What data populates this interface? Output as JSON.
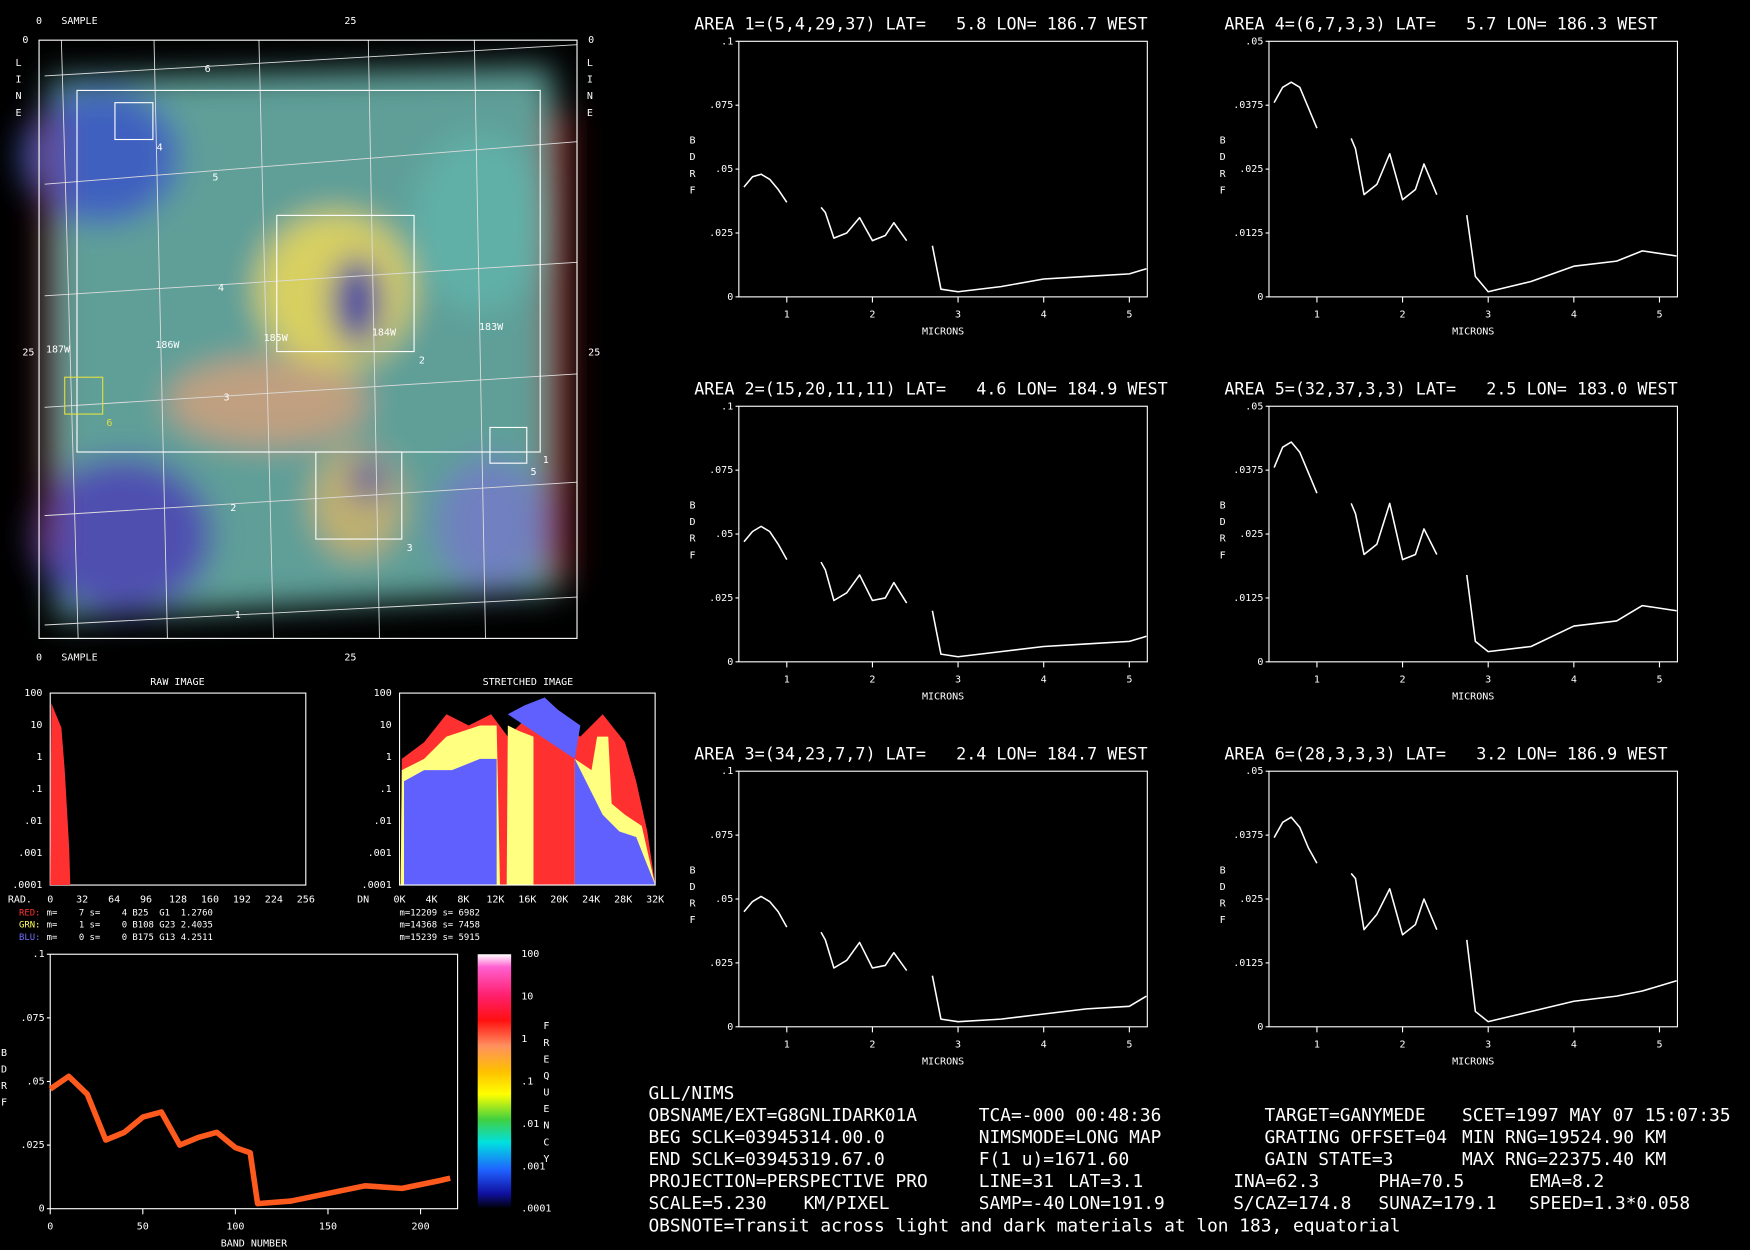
{
  "chart_data": [
    {
      "type": "line",
      "title": "AREA 1=(5,4,29,37) LAT=   5.8 LON= 186.7 WEST",
      "x_label": "MICRONS",
      "y_label": "BDRF",
      "color": "#ffffff",
      "x": [
        0.5,
        0.6,
        0.7,
        0.8,
        0.9,
        1.0,
        1.2,
        1.4,
        1.45,
        1.55,
        1.7,
        1.85,
        2.0,
        2.15,
        2.25,
        2.4,
        2.55,
        2.7,
        2.8,
        3.0,
        3.5,
        4.0,
        4.5,
        5.0,
        5.2
      ],
      "values": [
        0.043,
        0.047,
        0.048,
        0.046,
        0.042,
        0.037,
        null,
        0.035,
        0.033,
        0.023,
        0.025,
        0.031,
        0.022,
        0.024,
        0.029,
        0.022,
        null,
        0.02,
        0.003,
        0.002,
        0.004,
        0.007,
        0.008,
        0.009,
        0.011
      ],
      "xlim": [
        0.44,
        5.21
      ],
      "xticks": [
        1,
        2,
        3,
        4,
        5
      ],
      "ylim": [
        0,
        0.1
      ],
      "yticks": [
        0,
        {
          "value": 0.025,
          "label": ".025"
        },
        {
          "value": 0.05,
          "label": ".05"
        },
        {
          "value": 0.075,
          "label": ".075"
        },
        {
          "value": 0.1,
          "label": ".1"
        }
      ]
    },
    {
      "type": "line",
      "title": "AREA 2=(15,20,11,11) LAT=   4.6 LON= 184.9 WEST",
      "x_label": "MICRONS",
      "y_label": "BDRF",
      "color": "#ffffff",
      "x": [
        0.5,
        0.6,
        0.7,
        0.8,
        0.9,
        1.0,
        1.2,
        1.4,
        1.45,
        1.55,
        1.7,
        1.85,
        2.0,
        2.15,
        2.25,
        2.4,
        2.55,
        2.7,
        2.8,
        3.0,
        3.5,
        4.0,
        4.5,
        5.0,
        5.2
      ],
      "values": [
        0.047,
        0.051,
        0.053,
        0.051,
        0.046,
        0.04,
        null,
        0.039,
        0.036,
        0.024,
        0.027,
        0.034,
        0.024,
        0.025,
        0.031,
        0.023,
        null,
        0.02,
        0.003,
        0.002,
        0.004,
        0.006,
        0.007,
        0.008,
        0.01
      ],
      "xlim": [
        0.44,
        5.21
      ],
      "xticks": [
        1,
        2,
        3,
        4,
        5
      ],
      "ylim": [
        0,
        0.1
      ],
      "yticks": [
        0,
        {
          "value": 0.025,
          "label": ".025"
        },
        {
          "value": 0.05,
          "label": ".05"
        },
        {
          "value": 0.075,
          "label": ".075"
        },
        {
          "value": 0.1,
          "label": ".1"
        }
      ]
    },
    {
      "type": "line",
      "title": "AREA 3=(34,23,7,7) LAT=   2.4 LON= 184.7 WEST",
      "x_label": "MICRONS",
      "y_label": "BDRF",
      "color": "#ffffff",
      "x": [
        0.5,
        0.6,
        0.7,
        0.8,
        0.9,
        1.0,
        1.2,
        1.4,
        1.45,
        1.55,
        1.7,
        1.85,
        2.0,
        2.15,
        2.25,
        2.4,
        2.55,
        2.7,
        2.8,
        3.0,
        3.5,
        4.0,
        4.5,
        5.0,
        5.2
      ],
      "values": [
        0.045,
        0.049,
        0.051,
        0.049,
        0.045,
        0.039,
        null,
        0.037,
        0.034,
        0.023,
        0.026,
        0.033,
        0.023,
        0.024,
        0.029,
        0.022,
        null,
        0.02,
        0.003,
        0.002,
        0.003,
        0.005,
        0.007,
        0.008,
        0.012
      ],
      "xlim": [
        0.44,
        5.21
      ],
      "xticks": [
        1,
        2,
        3,
        4,
        5
      ],
      "ylim": [
        0,
        0.1
      ],
      "yticks": [
        0,
        {
          "value": 0.025,
          "label": ".025"
        },
        {
          "value": 0.05,
          "label": ".05"
        },
        {
          "value": 0.075,
          "label": ".075"
        },
        {
          "value": 0.1,
          "label": ".1"
        }
      ]
    },
    {
      "type": "line",
      "title": "AREA 4=(6,7,3,3) LAT=   5.7 LON= 186.3 WEST",
      "x_label": "MICRONS",
      "y_label": "BDRF",
      "color": "#ffffff",
      "x": [
        0.5,
        0.6,
        0.7,
        0.8,
        0.9,
        1.0,
        1.2,
        1.4,
        1.45,
        1.55,
        1.7,
        1.85,
        2.0,
        2.15,
        2.25,
        2.4,
        2.55,
        2.75,
        2.85,
        3.0,
        3.5,
        4.0,
        4.5,
        4.8,
        5.2
      ],
      "values": [
        0.038,
        0.041,
        0.042,
        0.041,
        0.037,
        0.033,
        null,
        0.031,
        0.029,
        0.02,
        0.022,
        0.028,
        0.019,
        0.021,
        0.026,
        0.02,
        null,
        0.016,
        0.004,
        0.001,
        0.003,
        0.006,
        0.007,
        0.009,
        0.008
      ],
      "xlim": [
        0.44,
        5.21
      ],
      "xticks": [
        1,
        2,
        3,
        4,
        5
      ],
      "ylim": [
        0,
        0.05
      ],
      "yticks": [
        0,
        {
          "value": 0.0125,
          "label": ".0125"
        },
        {
          "value": 0.025,
          "label": ".025"
        },
        {
          "value": 0.0375,
          "label": ".0375"
        },
        {
          "value": 0.05,
          "label": ".05"
        }
      ]
    },
    {
      "type": "line",
      "title": "AREA 5=(32,37,3,3) LAT=   2.5 LON= 183.0 WEST",
      "x_label": "MICRONS",
      "y_label": "BDRF",
      "color": "#ffffff",
      "x": [
        0.5,
        0.6,
        0.7,
        0.8,
        0.9,
        1.0,
        1.2,
        1.4,
        1.45,
        1.55,
        1.7,
        1.85,
        2.0,
        2.15,
        2.25,
        2.4,
        2.55,
        2.75,
        2.85,
        3.0,
        3.5,
        4.0,
        4.5,
        4.8,
        5.2
      ],
      "values": [
        0.038,
        0.042,
        0.043,
        0.041,
        0.037,
        0.033,
        null,
        0.031,
        0.029,
        0.021,
        0.023,
        0.031,
        0.02,
        0.021,
        0.026,
        0.021,
        null,
        0.017,
        0.004,
        0.002,
        0.003,
        0.007,
        0.008,
        0.011,
        0.01
      ],
      "xlim": [
        0.44,
        5.21
      ],
      "xticks": [
        1,
        2,
        3,
        4,
        5
      ],
      "ylim": [
        0,
        0.05
      ],
      "yticks": [
        0,
        {
          "value": 0.0125,
          "label": ".0125"
        },
        {
          "value": 0.025,
          "label": ".025"
        },
        {
          "value": 0.0375,
          "label": ".0375"
        },
        {
          "value": 0.05,
          "label": ".05"
        }
      ]
    },
    {
      "type": "line",
      "title": "AREA 6=(28,3,3,3) LAT=   3.2 LON= 186.9 WEST",
      "x_label": "MICRONS",
      "y_label": "BDRF",
      "color": "#ffffff",
      "x": [
        0.5,
        0.6,
        0.7,
        0.8,
        0.9,
        1.0,
        1.2,
        1.4,
        1.45,
        1.55,
        1.7,
        1.85,
        2.0,
        2.15,
        2.25,
        2.4,
        2.55,
        2.75,
        2.85,
        3.0,
        3.5,
        4.0,
        4.5,
        4.8,
        5.2
      ],
      "values": [
        0.037,
        0.04,
        0.041,
        0.039,
        0.035,
        0.032,
        null,
        0.03,
        0.029,
        0.019,
        0.022,
        0.027,
        0.018,
        0.02,
        0.025,
        0.019,
        null,
        0.017,
        0.003,
        0.001,
        0.003,
        0.005,
        0.006,
        0.007,
        0.009
      ],
      "xlim": [
        0.44,
        5.21
      ],
      "xticks": [
        1,
        2,
        3,
        4,
        5
      ],
      "ylim": [
        0,
        0.05
      ],
      "yticks": [
        0,
        {
          "value": 0.0125,
          "label": ".0125"
        },
        {
          "value": 0.025,
          "label": ".025"
        },
        {
          "value": 0.0375,
          "label": ".0375"
        },
        {
          "value": 0.05,
          "label": ".05"
        }
      ]
    },
    {
      "type": "line",
      "x_label": "BAND NUMBER",
      "y_label": "BDRF",
      "color": "#ff5a1e",
      "x": [
        0,
        10,
        20,
        30,
        40,
        50,
        60,
        70,
        80,
        90,
        100,
        108,
        112,
        130,
        150,
        170,
        190,
        210,
        216
      ],
      "values": [
        0.047,
        0.052,
        0.045,
        0.027,
        0.03,
        0.036,
        0.038,
        0.025,
        0.028,
        0.03,
        0.024,
        0.022,
        0.002,
        0.003,
        0.006,
        0.009,
        0.008,
        0.011,
        0.012
      ],
      "xlim": [
        0,
        220
      ],
      "xticks": [
        0,
        50,
        100,
        150,
        200
      ],
      "ylim": [
        0,
        0.1
      ],
      "yticks": [
        0,
        {
          "value": 0.025,
          "label": ".025"
        },
        {
          "value": 0.05,
          "label": ".05"
        },
        {
          "value": 0.075,
          "label": ".075"
        },
        {
          "value": 0.1,
          "label": ".1"
        }
      ]
    }
  ],
  "image": {
    "top_axis": [
      "0",
      "SAMPLE",
      "25"
    ],
    "bottom_axis": [
      "0",
      "SAMPLE",
      "25"
    ],
    "left_axis": [
      "0",
      "25"
    ],
    "right_axis": [
      "0",
      "25"
    ],
    "side_labels": [
      "LINE",
      "LINE"
    ],
    "grid_numbers": [
      "6",
      "5",
      "4",
      "3",
      "2",
      "1"
    ],
    "longitudes": [
      "187W",
      "186W",
      "185W",
      "184W",
      "183W"
    ],
    "area_numbers": [
      "4",
      "2",
      "6",
      "1",
      "5",
      "3"
    ]
  },
  "histograms": [
    {
      "title": "RAW IMAGE",
      "x_label": "RAD.",
      "xticks": [
        "0",
        "32",
        "64",
        "96",
        "128",
        "160",
        "192",
        "224",
        "256"
      ],
      "yticks": [
        "100",
        "10",
        "1",
        ".1",
        ".01",
        ".001",
        ".0001"
      ]
    },
    {
      "title": "STRETCHED IMAGE",
      "x_label": "DN",
      "xticks": [
        "0K",
        "4K",
        "8K",
        "12K",
        "16K",
        "20K",
        "24K",
        "28K",
        "32K"
      ],
      "yticks": [
        "100",
        "10",
        "1",
        ".1",
        ".01",
        ".001",
        ".0001"
      ]
    }
  ],
  "stats": {
    "raw": [
      {
        "label": "RED:",
        "color": "#ff3030",
        "text": " m=    7 s=    4 B25  G1  1.2760"
      },
      {
        "label": "GRN:",
        "color": "#ffff60",
        "text": " m=    1 s=    0 B108 G23 2.4035"
      },
      {
        "label": "BLU:",
        "color": "#7070ff",
        "text": " m=    0 s=    0 B175 G13 4.2511"
      }
    ],
    "stretched": [
      "m=12209 s= 6982",
      "m=14368 s= 7458",
      "m=15239 s= 5915"
    ]
  },
  "colorbar": {
    "title": "FREQUENCY",
    "labels": [
      "100",
      "10",
      "1",
      ".1",
      ".01",
      ".001",
      ".0001"
    ]
  },
  "info": {
    "rows": [
      [
        "GLL/NIMS"
      ],
      [
        "OBSNAME/EXT=G8GNLIDARK01A",
        "TCA=-000 00:48:36",
        "TARGET=GANYMEDE",
        "SCET=1997 MAY 07 15:07:35"
      ],
      [
        "BEG SCLK=03945314.00.0",
        "NIMSMODE=LONG MAP",
        "GRATING OFFSET=04",
        "MIN RNG=19524.90 KM"
      ],
      [
        "END SCLK=03945319.67.0",
        "F(1 u)=1671.60",
        "GAIN STATE=3",
        "MAX RNG=22375.40 KM"
      ],
      [
        "PROJECTION=PERSPECTIVE PRO",
        "LINE=31",
        "LAT=3.1",
        "INA=62.3",
        "PHA=70.5",
        "EMA=8.2"
      ],
      [
        "SCALE=5.230",
        "KM/PIXEL",
        "SAMP=-40",
        "LON=191.9",
        "S/CAZ=174.8",
        "SUNAZ=179.1",
        "SPEED=1.3*0.058"
      ],
      [
        "OBSNOTE=Transit across light and dark materials at lon 183, equatorial"
      ]
    ]
  }
}
